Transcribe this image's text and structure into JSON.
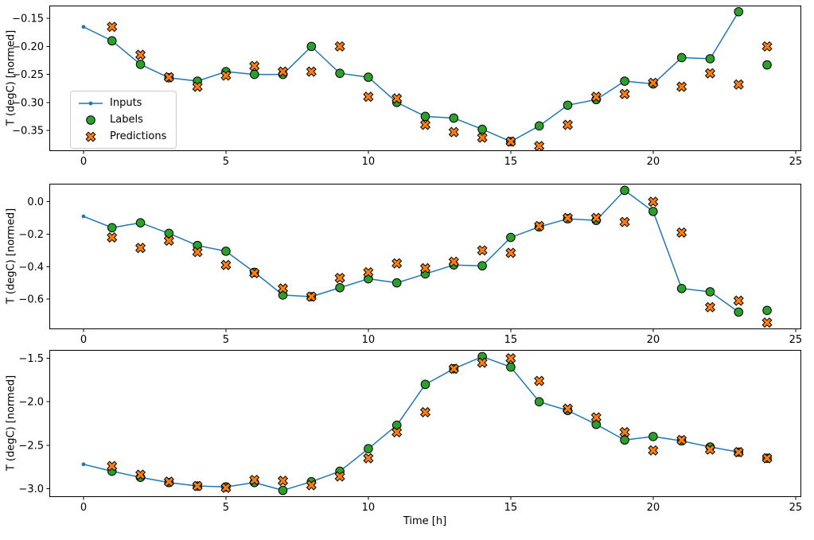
{
  "figure": {
    "background": "#ffffff",
    "xlabel": "Time [h]",
    "ylabel": "T (degC) [normed]"
  },
  "legend": {
    "position": "upper-left-of-first-subplot",
    "items": [
      {
        "label": "Inputs",
        "marker": "line-dot-icon",
        "color": "#1f77b4"
      },
      {
        "label": "Labels",
        "marker": "circle-icon",
        "color": "#2ca02c",
        "edge": "#000000"
      },
      {
        "label": "Predictions",
        "marker": "x-icon",
        "color": "#ff7f0e",
        "edge": "#000000"
      }
    ]
  },
  "chart_data": [
    {
      "type": "line",
      "ylabel": "T (degC) [normed]",
      "xlabel": "",
      "xlim": [
        -1.2,
        25.2
      ],
      "ylim": [
        -0.387,
        -0.127
      ],
      "xticks": [
        0,
        5,
        10,
        15,
        20,
        25
      ],
      "xtick_labels": [
        "0",
        "5",
        "10",
        "15",
        "20",
        "25"
      ],
      "yticks": [
        -0.15,
        -0.2,
        -0.25,
        -0.3,
        -0.35
      ],
      "ytick_labels": [
        "−0.15",
        "−0.20",
        "−0.25",
        "−0.30",
        "−0.35"
      ],
      "grid": false,
      "legend": true,
      "series": [
        {
          "name": "Inputs",
          "type": "line",
          "color": "#1f77b4",
          "x": [
            0,
            1,
            2,
            3,
            4,
            5,
            6,
            7,
            8,
            9,
            10,
            11,
            12,
            13,
            14,
            15,
            16,
            17,
            18,
            19,
            20,
            21,
            22,
            23
          ],
          "y": [
            -0.165,
            -0.19,
            -0.232,
            -0.256,
            -0.262,
            -0.245,
            -0.25,
            -0.25,
            -0.2,
            -0.248,
            -0.255,
            -0.3,
            -0.325,
            -0.328,
            -0.348,
            -0.37,
            -0.342,
            -0.305,
            -0.295,
            -0.262,
            -0.267,
            -0.22,
            -0.222,
            -0.138
          ]
        },
        {
          "name": "Labels",
          "type": "scatter",
          "marker": "circle",
          "color": "#2ca02c",
          "edge": "#000000",
          "x": [
            1,
            2,
            3,
            4,
            5,
            6,
            7,
            8,
            9,
            10,
            11,
            12,
            13,
            14,
            15,
            16,
            17,
            18,
            19,
            20,
            21,
            22,
            23,
            24
          ],
          "y": [
            -0.19,
            -0.232,
            -0.256,
            -0.262,
            -0.245,
            -0.25,
            -0.25,
            -0.2,
            -0.248,
            -0.255,
            -0.3,
            -0.325,
            -0.328,
            -0.348,
            -0.37,
            -0.342,
            -0.305,
            -0.295,
            -0.262,
            -0.267,
            -0.22,
            -0.222,
            -0.138,
            -0.233
          ]
        },
        {
          "name": "Predictions",
          "type": "scatter",
          "marker": "X",
          "color": "#ff7f0e",
          "edge": "#000000",
          "x": [
            1,
            2,
            3,
            4,
            5,
            6,
            7,
            8,
            9,
            10,
            11,
            12,
            13,
            14,
            15,
            16,
            17,
            18,
            19,
            20,
            21,
            22,
            23,
            24
          ],
          "y": [
            -0.165,
            -0.215,
            -0.255,
            -0.272,
            -0.252,
            -0.235,
            -0.245,
            -0.245,
            -0.2,
            -0.29,
            -0.293,
            -0.34,
            -0.353,
            -0.363,
            -0.37,
            -0.378,
            -0.34,
            -0.29,
            -0.285,
            -0.265,
            -0.272,
            -0.248,
            -0.268,
            -0.2
          ]
        }
      ]
    },
    {
      "type": "line",
      "ylabel": "T (degC) [normed]",
      "xlabel": "",
      "xlim": [
        -1.2,
        25.2
      ],
      "ylim": [
        -0.786,
        0.111
      ],
      "xticks": [
        0,
        5,
        10,
        15,
        20,
        25
      ],
      "xtick_labels": [
        "0",
        "5",
        "10",
        "15",
        "20",
        "25"
      ],
      "yticks": [
        0.0,
        -0.2,
        -0.4,
        -0.6
      ],
      "ytick_labels": [
        "0.0",
        "−0.2",
        "−0.4",
        "−0.6"
      ],
      "grid": false,
      "legend": false,
      "series": [
        {
          "name": "Inputs",
          "type": "line",
          "color": "#1f77b4",
          "x": [
            0,
            1,
            2,
            3,
            4,
            5,
            6,
            7,
            8,
            9,
            10,
            11,
            12,
            13,
            14,
            15,
            16,
            17,
            18,
            19,
            20,
            21,
            22,
            23
          ],
          "y": [
            -0.09,
            -0.16,
            -0.13,
            -0.195,
            -0.27,
            -0.305,
            -0.435,
            -0.575,
            -0.585,
            -0.53,
            -0.475,
            -0.5,
            -0.445,
            -0.39,
            -0.395,
            -0.22,
            -0.155,
            -0.105,
            -0.115,
            0.07,
            -0.06,
            -0.535,
            -0.555,
            -0.68
          ]
        },
        {
          "name": "Labels",
          "type": "scatter",
          "marker": "circle",
          "color": "#2ca02c",
          "edge": "#000000",
          "x": [
            1,
            2,
            3,
            4,
            5,
            6,
            7,
            8,
            9,
            10,
            11,
            12,
            13,
            14,
            15,
            16,
            17,
            18,
            19,
            20,
            21,
            22,
            23,
            24
          ],
          "y": [
            -0.16,
            -0.13,
            -0.195,
            -0.27,
            -0.305,
            -0.435,
            -0.575,
            -0.585,
            -0.53,
            -0.475,
            -0.5,
            -0.445,
            -0.39,
            -0.395,
            -0.22,
            -0.155,
            -0.105,
            -0.115,
            0.07,
            -0.06,
            -0.535,
            -0.555,
            -0.68,
            -0.67
          ]
        },
        {
          "name": "Predictions",
          "type": "scatter",
          "marker": "X",
          "color": "#ff7f0e",
          "edge": "#000000",
          "x": [
            1,
            2,
            3,
            4,
            5,
            6,
            7,
            8,
            9,
            10,
            11,
            12,
            13,
            14,
            15,
            16,
            17,
            18,
            19,
            20,
            21,
            22,
            23,
            24
          ],
          "y": [
            -0.22,
            -0.285,
            -0.24,
            -0.31,
            -0.39,
            -0.44,
            -0.535,
            -0.585,
            -0.47,
            -0.435,
            -0.38,
            -0.41,
            -0.37,
            -0.3,
            -0.315,
            -0.15,
            -0.1,
            -0.1,
            -0.125,
            0.0,
            -0.19,
            -0.65,
            -0.61,
            -0.745
          ]
        }
      ]
    },
    {
      "type": "line",
      "ylabel": "T (degC) [normed]",
      "xlabel": "Time [h]",
      "xlim": [
        -1.2,
        25.2
      ],
      "ylim": [
        -3.097,
        -1.403
      ],
      "xticks": [
        0,
        5,
        10,
        15,
        20,
        25
      ],
      "xtick_labels": [
        "0",
        "5",
        "10",
        "15",
        "20",
        "25"
      ],
      "yticks": [
        -1.5,
        -2.0,
        -2.5,
        -3.0
      ],
      "ytick_labels": [
        "−1.5",
        "−2.0",
        "−2.5",
        "−3.0"
      ],
      "grid": false,
      "legend": false,
      "series": [
        {
          "name": "Inputs",
          "type": "line",
          "color": "#1f77b4",
          "x": [
            0,
            1,
            2,
            3,
            4,
            5,
            6,
            7,
            8,
            9,
            10,
            11,
            12,
            13,
            14,
            15,
            16,
            17,
            18,
            19,
            20,
            21,
            22,
            23
          ],
          "y": [
            -2.72,
            -2.8,
            -2.87,
            -2.93,
            -2.97,
            -2.98,
            -2.93,
            -3.02,
            -2.92,
            -2.8,
            -2.54,
            -2.27,
            -1.8,
            -1.62,
            -1.48,
            -1.6,
            -2.0,
            -2.1,
            -2.26,
            -2.44,
            -2.4,
            -2.45,
            -2.52,
            -2.58
          ]
        },
        {
          "name": "Labels",
          "type": "scatter",
          "marker": "circle",
          "color": "#2ca02c",
          "edge": "#000000",
          "x": [
            1,
            2,
            3,
            4,
            5,
            6,
            7,
            8,
            9,
            10,
            11,
            12,
            13,
            14,
            15,
            16,
            17,
            18,
            19,
            20,
            21,
            22,
            23,
            24
          ],
          "y": [
            -2.8,
            -2.87,
            -2.93,
            -2.97,
            -2.98,
            -2.93,
            -3.02,
            -2.92,
            -2.8,
            -2.54,
            -2.27,
            -1.8,
            -1.62,
            -1.48,
            -1.6,
            -2.0,
            -2.1,
            -2.26,
            -2.44,
            -2.4,
            -2.45,
            -2.52,
            -2.58,
            -2.65
          ]
        },
        {
          "name": "Predictions",
          "type": "scatter",
          "marker": "X",
          "color": "#ff7f0e",
          "edge": "#000000",
          "x": [
            1,
            2,
            3,
            4,
            5,
            6,
            7,
            8,
            9,
            10,
            11,
            12,
            13,
            14,
            15,
            16,
            17,
            18,
            19,
            20,
            21,
            22,
            23,
            24
          ],
          "y": [
            -2.74,
            -2.84,
            -2.92,
            -2.97,
            -2.99,
            -2.9,
            -2.91,
            -2.96,
            -2.86,
            -2.65,
            -2.35,
            -2.12,
            -1.62,
            -1.55,
            -1.5,
            -1.76,
            -2.08,
            -2.18,
            -2.35,
            -2.56,
            -2.44,
            -2.55,
            -2.58,
            -2.65
          ]
        }
      ]
    }
  ]
}
